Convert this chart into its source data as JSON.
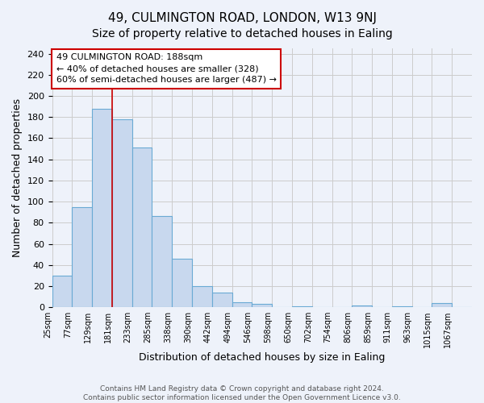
{
  "title": "49, CULMINGTON ROAD, LONDON, W13 9NJ",
  "subtitle": "Size of property relative to detached houses in Ealing",
  "xlabel": "Distribution of detached houses by size in Ealing",
  "ylabel": "Number of detached properties",
  "bin_labels": [
    "25sqm",
    "77sqm",
    "129sqm",
    "181sqm",
    "233sqm",
    "285sqm",
    "338sqm",
    "390sqm",
    "442sqm",
    "494sqm",
    "546sqm",
    "598sqm",
    "650sqm",
    "702sqm",
    "754sqm",
    "806sqm",
    "859sqm",
    "911sqm",
    "963sqm",
    "1015sqm",
    "1067sqm"
  ],
  "bar_heights": [
    30,
    95,
    188,
    178,
    151,
    86,
    46,
    20,
    14,
    5,
    3,
    0,
    1,
    0,
    0,
    2,
    0,
    1,
    0,
    4,
    0
  ],
  "bar_color": "#c8d8ee",
  "bar_edge_color": "#6aaad4",
  "marker_bin_index": 3,
  "marker_color": "#cc0000",
  "annotation_lines": [
    "49 CULMINGTON ROAD: 188sqm",
    "← 40% of detached houses are smaller (328)",
    "60% of semi-detached houses are larger (487) →"
  ],
  "annotation_box_color": "white",
  "annotation_box_edge": "#cc0000",
  "ylim": [
    0,
    245
  ],
  "yticks": [
    0,
    20,
    40,
    60,
    80,
    100,
    120,
    140,
    160,
    180,
    200,
    220,
    240
  ],
  "footer_lines": [
    "Contains HM Land Registry data © Crown copyright and database right 2024.",
    "Contains public sector information licensed under the Open Government Licence v3.0."
  ],
  "background_color": "#eef2fa",
  "grid_color": "#cccccc",
  "title_fontsize": 11,
  "subtitle_fontsize": 10
}
